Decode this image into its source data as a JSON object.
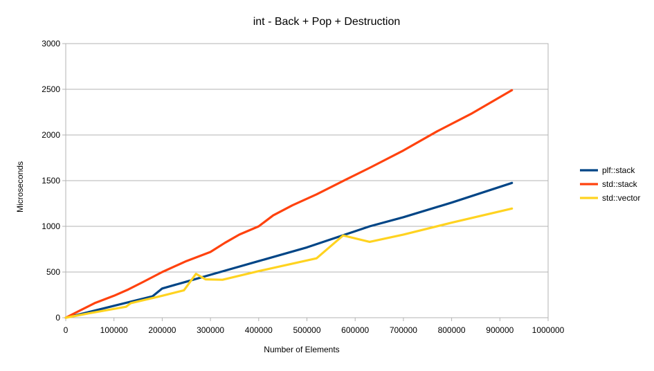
{
  "chart_data": {
    "type": "line",
    "title": "int - Back + Pop + Destruction",
    "xlabel": "Number of Elements",
    "ylabel": "Microseconds",
    "xlim": [
      0,
      1000000
    ],
    "ylim": [
      0,
      3000
    ],
    "x_ticks": [
      0,
      100000,
      200000,
      300000,
      400000,
      500000,
      600000,
      700000,
      800000,
      900000,
      1000000
    ],
    "y_ticks": [
      0,
      500,
      1000,
      1500,
      2000,
      2500,
      3000
    ],
    "x_tick_labels": [
      "0",
      "100000",
      "200000",
      "300000",
      "400000",
      "500000",
      "600000",
      "700000",
      "800000",
      "900000",
      "1000000"
    ],
    "y_tick_labels": [
      "0",
      "500",
      "1000",
      "1500",
      "2000",
      "2500",
      "3000"
    ],
    "grid": "horizontal",
    "legend": "right",
    "series": [
      {
        "name": "plf::stack",
        "color": "#004586",
        "x": [
          0,
          50000,
          100000,
          180000,
          200000,
          250000,
          300000,
          400000,
          500000,
          630000,
          700000,
          800000,
          925000
        ],
        "y": [
          0,
          65,
          130,
          235,
          320,
          395,
          470,
          620,
          770,
          1000,
          1100,
          1260,
          1475
        ]
      },
      {
        "name": "std::stack",
        "color": "#ff420e",
        "x": [
          0,
          30000,
          45000,
          60000,
          70000,
          100000,
          130000,
          160000,
          200000,
          250000,
          300000,
          330000,
          360000,
          400000,
          430000,
          470000,
          520000,
          580000,
          630000,
          700000,
          770000,
          840000,
          925000
        ],
        "y": [
          0,
          80,
          120,
          160,
          180,
          240,
          310,
          390,
          500,
          620,
          720,
          820,
          910,
          1000,
          1120,
          1230,
          1350,
          1510,
          1640,
          1830,
          2040,
          2230,
          2490
        ]
      },
      {
        "name": "std::vector",
        "color": "#ffd320",
        "x": [
          0,
          50000,
          125000,
          135000,
          200000,
          245000,
          270000,
          290000,
          325000,
          400000,
          520000,
          575000,
          630000,
          700000,
          800000,
          925000
        ],
        "y": [
          0,
          50,
          120,
          160,
          240,
          300,
          480,
          420,
          415,
          510,
          650,
          900,
          830,
          910,
          1040,
          1195
        ]
      }
    ]
  }
}
